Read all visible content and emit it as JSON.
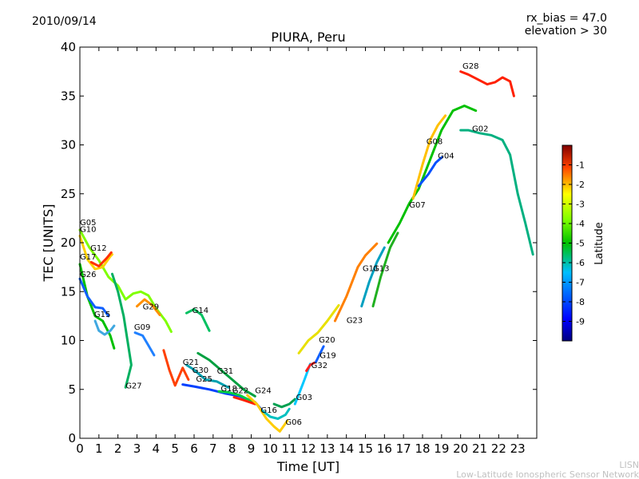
{
  "header": {
    "date": "2010/09/14",
    "rx_bias": "rx_bias = 47.0",
    "elevation": "elevation > 30"
  },
  "footer": {
    "org_short": "LISN",
    "org_long": "Low-Latitude Ionospheric Sensor Network"
  },
  "chart_data": {
    "type": "scatter",
    "title": "PIURA, Peru",
    "xlabel": "Time [UT]",
    "ylabel": "TEC [UNITS]",
    "xlim": [
      0,
      24
    ],
    "ylim": [
      0,
      40
    ],
    "xticks": [
      "0",
      "1",
      "2",
      "3",
      "4",
      "5",
      "6",
      "7",
      "8",
      "9",
      "10",
      "11",
      "12",
      "13",
      "14",
      "15",
      "16",
      "17",
      "18",
      "19",
      "20",
      "21",
      "22",
      "23"
    ],
    "yticks": [
      "0",
      "5",
      "10",
      "15",
      "20",
      "25",
      "30",
      "35",
      "40"
    ],
    "grid": false,
    "colorbar": {
      "label": "Latitude",
      "range": [
        -10,
        0
      ],
      "ticks": [
        "-1",
        "-2",
        "-3",
        "-4",
        "-5",
        "-6",
        "-7",
        "-8",
        "-9"
      ]
    },
    "series": [
      {
        "name": "G05",
        "color": "#7fff00",
        "points": [
          [
            0,
            21.3
          ],
          [
            0.5,
            19.5
          ],
          [
            1,
            18.2
          ],
          [
            1.5,
            16.5
          ],
          [
            2,
            15.6
          ],
          [
            2.4,
            14.2
          ],
          [
            2.8,
            14.8
          ],
          [
            3.2,
            15.0
          ],
          [
            3.6,
            14.6
          ],
          [
            4.0,
            13.3
          ],
          [
            4.5,
            12.0
          ],
          [
            4.8,
            10.9
          ]
        ]
      },
      {
        "name": "G10",
        "color": "#ffd000",
        "points": [
          [
            0,
            20.7
          ],
          [
            0.4,
            18.3
          ],
          [
            0.8,
            17.3
          ],
          [
            1.2,
            17.5
          ],
          [
            1.6,
            18.6
          ],
          [
            1.7,
            18.8
          ]
        ]
      },
      {
        "name": "G12",
        "color": "#ff3000",
        "points": [
          [
            0.6,
            18.0
          ],
          [
            1.0,
            17.6
          ],
          [
            1.4,
            18.4
          ],
          [
            1.65,
            19.0
          ]
        ]
      },
      {
        "name": "G17",
        "color": "#00c000",
        "points": [
          [
            0,
            17.8
          ],
          [
            0.4,
            14.5
          ],
          [
            0.8,
            12.5
          ],
          [
            1.2,
            12.0
          ],
          [
            1.6,
            10.5
          ],
          [
            1.8,
            9.2
          ]
        ]
      },
      {
        "name": "G26",
        "color": "#1060ff",
        "points": [
          [
            0,
            16.3
          ],
          [
            0.4,
            14.5
          ],
          [
            0.8,
            13.4
          ],
          [
            1.2,
            13.3
          ],
          [
            1.5,
            12.5
          ]
        ]
      },
      {
        "name": "G15",
        "color": "#40a8e0",
        "points": [
          [
            0.8,
            12.0
          ],
          [
            1.0,
            11.0
          ],
          [
            1.3,
            10.6
          ],
          [
            1.6,
            11.0
          ],
          [
            1.8,
            11.5
          ]
        ]
      },
      {
        "name": "G27",
        "color": "#00b060",
        "points": [
          [
            1.7,
            16.8
          ],
          [
            2.0,
            15.0
          ],
          [
            2.3,
            12.5
          ],
          [
            2.5,
            10.0
          ],
          [
            2.7,
            7.5
          ],
          [
            2.4,
            5.2
          ]
        ]
      },
      {
        "name": "G29",
        "color": "#ff9000",
        "points": [
          [
            3.0,
            13.5
          ],
          [
            3.4,
            14.2
          ],
          [
            3.8,
            13.6
          ],
          [
            4.2,
            12.6
          ]
        ]
      },
      {
        "name": "G09",
        "color": "#2080ff",
        "points": [
          [
            2.9,
            10.8
          ],
          [
            3.3,
            10.5
          ],
          [
            3.6,
            9.5
          ],
          [
            3.9,
            8.5
          ]
        ]
      },
      {
        "name": "G14",
        "color": "#00c060",
        "points": [
          [
            5.6,
            12.8
          ],
          [
            6.0,
            13.2
          ],
          [
            6.4,
            12.6
          ],
          [
            6.8,
            11.0
          ]
        ]
      },
      {
        "name": "G21",
        "color": "#ff4000",
        "points": [
          [
            4.4,
            9.0
          ],
          [
            4.7,
            7.0
          ],
          [
            5.0,
            5.4
          ],
          [
            5.4,
            7.2
          ],
          [
            5.7,
            6.0
          ]
        ]
      },
      {
        "name": "G30",
        "color": "#00a0b0",
        "points": [
          [
            5.6,
            7.5
          ],
          [
            6.0,
            7.0
          ],
          [
            6.6,
            6.0
          ],
          [
            7.2,
            5.8
          ],
          [
            7.8,
            5.2
          ]
        ]
      },
      {
        "name": "G25",
        "color": "#0040ff",
        "points": [
          [
            5.4,
            5.5
          ],
          [
            6.0,
            5.3
          ],
          [
            6.8,
            5.0
          ],
          [
            7.6,
            4.6
          ],
          [
            8.4,
            4.3
          ],
          [
            9.2,
            3.7
          ],
          [
            9.6,
            2.8
          ]
        ]
      },
      {
        "name": "G31",
        "color": "#00a040",
        "points": [
          [
            6.2,
            8.7
          ],
          [
            6.8,
            8.0
          ],
          [
            7.4,
            7.0
          ],
          [
            8.0,
            6.0
          ],
          [
            8.6,
            5.0
          ],
          [
            9.2,
            4.3
          ]
        ]
      },
      {
        "name": "G18",
        "color": "#00d040",
        "points": [
          [
            7.3,
            4.8
          ],
          [
            7.8,
            4.7
          ],
          [
            8.4,
            4.4
          ],
          [
            9.0,
            3.8
          ]
        ]
      },
      {
        "name": "G22",
        "color": "#ff2000",
        "points": [
          [
            8.1,
            4.2
          ],
          [
            8.6,
            3.9
          ],
          [
            9.2,
            3.5
          ]
        ]
      },
      {
        "name": "G24",
        "color": "#ffcc00",
        "points": [
          [
            8.8,
            4.4
          ],
          [
            9.3,
            3.5
          ],
          [
            9.8,
            2.0
          ],
          [
            10.2,
            1.2
          ],
          [
            10.5,
            0.7
          ],
          [
            10.9,
            1.8
          ]
        ]
      },
      {
        "name": "G16",
        "color": "#00c0c0",
        "points": [
          [
            9.6,
            2.8
          ],
          [
            10.0,
            2.2
          ],
          [
            10.4,
            2.0
          ],
          [
            10.8,
            2.4
          ],
          [
            11.0,
            3.0
          ]
        ]
      },
      {
        "name": "G06",
        "color": "#00a050",
        "points": [
          [
            10.2,
            3.5
          ],
          [
            10.6,
            3.2
          ],
          [
            11.0,
            3.5
          ],
          [
            11.3,
            4.0
          ]
        ]
      },
      {
        "name": "G03",
        "color": "#00c8ff",
        "points": [
          [
            11.3,
            3.5
          ],
          [
            11.5,
            4.5
          ],
          [
            11.8,
            6.0
          ],
          [
            12.1,
            7.6
          ]
        ]
      },
      {
        "name": "G32",
        "color": "#ff2020",
        "points": [
          [
            11.9,
            6.9
          ],
          [
            12.1,
            7.5
          ],
          [
            12.4,
            7.8
          ]
        ]
      },
      {
        "name": "G19",
        "color": "#1060ff",
        "points": [
          [
            12.4,
            7.8
          ],
          [
            12.6,
            8.6
          ],
          [
            12.8,
            9.4
          ]
        ]
      },
      {
        "name": "G20",
        "color": "#e8e000",
        "points": [
          [
            11.5,
            8.7
          ],
          [
            12.0,
            10.0
          ],
          [
            12.5,
            10.8
          ],
          [
            13.0,
            12.0
          ],
          [
            13.6,
            13.6
          ]
        ]
      },
      {
        "name": "G23",
        "color": "#ff8000",
        "points": [
          [
            13.4,
            12.0
          ],
          [
            14.0,
            14.5
          ],
          [
            14.6,
            17.5
          ],
          [
            15.0,
            18.7
          ],
          [
            15.6,
            19.9
          ]
        ]
      },
      {
        "name": "G11",
        "color": "#00a0c0",
        "points": [
          [
            14.8,
            13.5
          ],
          [
            15.2,
            16.0
          ],
          [
            15.6,
            18.0
          ],
          [
            16.0,
            19.5
          ]
        ]
      },
      {
        "name": "G13",
        "color": "#20b020",
        "points": [
          [
            15.4,
            13.5
          ],
          [
            15.8,
            16.5
          ],
          [
            16.3,
            19.5
          ],
          [
            16.7,
            21.0
          ]
        ]
      },
      {
        "name": "G07",
        "color": "#00c000",
        "points": [
          [
            16.2,
            20.0
          ],
          [
            16.8,
            22.0
          ],
          [
            17.3,
            24.0
          ],
          [
            17.8,
            25.5
          ],
          [
            18.4,
            28.5
          ],
          [
            19.0,
            31.5
          ],
          [
            19.6,
            33.5
          ],
          [
            20.2,
            34.0
          ],
          [
            20.8,
            33.5
          ]
        ]
      },
      {
        "name": "G08",
        "color": "#ffc000",
        "points": [
          [
            17.5,
            24.5
          ],
          [
            18.0,
            28.0
          ],
          [
            18.4,
            30.5
          ],
          [
            18.8,
            32.0
          ],
          [
            19.2,
            33.0
          ]
        ]
      },
      {
        "name": "G04",
        "color": "#0050ff",
        "points": [
          [
            17.8,
            25.8
          ],
          [
            18.3,
            27.0
          ],
          [
            18.7,
            28.2
          ],
          [
            19.0,
            28.7
          ]
        ]
      },
      {
        "name": "G02",
        "color": "#00b080",
        "points": [
          [
            20.0,
            31.5
          ],
          [
            20.4,
            31.5
          ],
          [
            21.0,
            31.2
          ],
          [
            21.6,
            31.0
          ],
          [
            22.2,
            30.5
          ],
          [
            22.6,
            29.0
          ],
          [
            23.0,
            25.0
          ],
          [
            23.4,
            22.0
          ],
          [
            23.8,
            18.8
          ]
        ]
      },
      {
        "name": "G28",
        "color": "#ff2000",
        "points": [
          [
            20.0,
            37.5
          ],
          [
            20.4,
            37.2
          ],
          [
            20.8,
            36.8
          ],
          [
            21.4,
            36.2
          ],
          [
            21.8,
            36.4
          ],
          [
            22.2,
            36.9
          ],
          [
            22.6,
            36.5
          ],
          [
            22.8,
            35.0
          ]
        ]
      }
    ],
    "labels": [
      {
        "text": "G05",
        "x": 0.0,
        "y": 21.8
      },
      {
        "text": "G10",
        "x": 0.0,
        "y": 21.1
      },
      {
        "text": "G12",
        "x": 0.55,
        "y": 19.2
      },
      {
        "text": "G17",
        "x": 0.0,
        "y": 18.3
      },
      {
        "text": "G26",
        "x": 0.0,
        "y": 16.5
      },
      {
        "text": "G15",
        "x": 0.75,
        "y": 12.4
      },
      {
        "text": "G27",
        "x": 2.4,
        "y": 5.1
      },
      {
        "text": "G29",
        "x": 3.3,
        "y": 13.2
      },
      {
        "text": "G09",
        "x": 2.85,
        "y": 11.1
      },
      {
        "text": "G14",
        "x": 5.9,
        "y": 12.8
      },
      {
        "text": "G21",
        "x": 5.4,
        "y": 7.5
      },
      {
        "text": "G30",
        "x": 5.9,
        "y": 6.7
      },
      {
        "text": "G25",
        "x": 6.1,
        "y": 5.8
      },
      {
        "text": "G31",
        "x": 7.2,
        "y": 6.6
      },
      {
        "text": "G18",
        "x": 7.4,
        "y": 4.8
      },
      {
        "text": "G22",
        "x": 8.0,
        "y": 4.6
      },
      {
        "text": "G24",
        "x": 9.2,
        "y": 4.6
      },
      {
        "text": "G16",
        "x": 9.5,
        "y": 2.6
      },
      {
        "text": "G06",
        "x": 10.8,
        "y": 1.4
      },
      {
        "text": "G03",
        "x": 11.35,
        "y": 3.9
      },
      {
        "text": "G32",
        "x": 12.15,
        "y": 7.2
      },
      {
        "text": "G19",
        "x": 12.6,
        "y": 8.2
      },
      {
        "text": "G20",
        "x": 12.55,
        "y": 9.8
      },
      {
        "text": "G23",
        "x": 14.0,
        "y": 11.8
      },
      {
        "text": "G11",
        "x": 14.85,
        "y": 17.1
      },
      {
        "text": "G13",
        "x": 15.4,
        "y": 17.1
      },
      {
        "text": "G07",
        "x": 17.3,
        "y": 23.6
      },
      {
        "text": "G08",
        "x": 18.2,
        "y": 30.1
      },
      {
        "text": "G04",
        "x": 18.8,
        "y": 28.6
      },
      {
        "text": "G02",
        "x": 20.6,
        "y": 31.4
      },
      {
        "text": "G28",
        "x": 20.1,
        "y": 37.8
      }
    ]
  }
}
